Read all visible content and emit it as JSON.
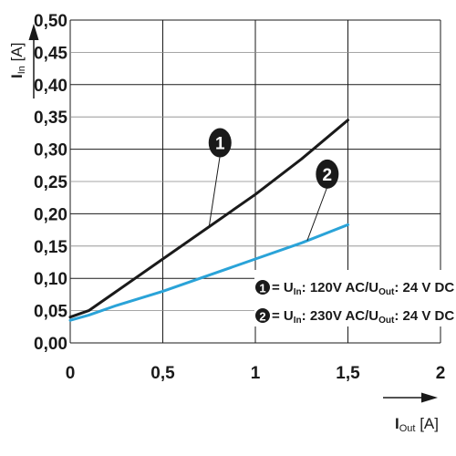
{
  "chart_data": {
    "type": "line",
    "xlabel": {
      "main": "I",
      "sub": "Out",
      "unit": " [A]"
    },
    "ylabel": {
      "main": "I",
      "sub": "In",
      "unit": " [A]"
    },
    "xlim": [
      0,
      2
    ],
    "ylim": [
      0,
      0.5
    ],
    "x_ticks": [
      "0",
      "0,5",
      "1",
      "1,5",
      "2"
    ],
    "y_ticks": [
      "0,00",
      "0,05",
      "0,10",
      "0,15",
      "0,20",
      "0,25",
      "0,30",
      "0,35",
      "0,40",
      "0,45",
      "0,50"
    ],
    "grid": true,
    "legend_position": "lower-right",
    "series": [
      {
        "id": "1",
        "badge": "1",
        "color": "#1a1a1a",
        "legend": {
          "eq": "= U",
          "in_sub": "In",
          "in_val": ": 120V AC/U",
          "out_sub": "Out",
          "out_val": ": 24 V DC"
        },
        "x": [
          0.0,
          0.1,
          0.25,
          0.5,
          0.75,
          1.0,
          1.25,
          1.5
        ],
        "y": [
          0.04,
          0.05,
          0.08,
          0.13,
          0.18,
          0.23,
          0.285,
          0.345
        ]
      },
      {
        "id": "2",
        "badge": "2",
        "color": "#2aa3d8",
        "legend": {
          "eq": "= U",
          "in_sub": "In",
          "in_val": ": 230V AC/U",
          "out_sub": "Out",
          "out_val": ": 24 V DC"
        },
        "x": [
          0.0,
          0.1,
          0.25,
          0.5,
          0.75,
          1.0,
          1.25,
          1.5
        ],
        "y": [
          0.035,
          0.043,
          0.058,
          0.08,
          0.105,
          0.13,
          0.155,
          0.183
        ]
      }
    ]
  }
}
